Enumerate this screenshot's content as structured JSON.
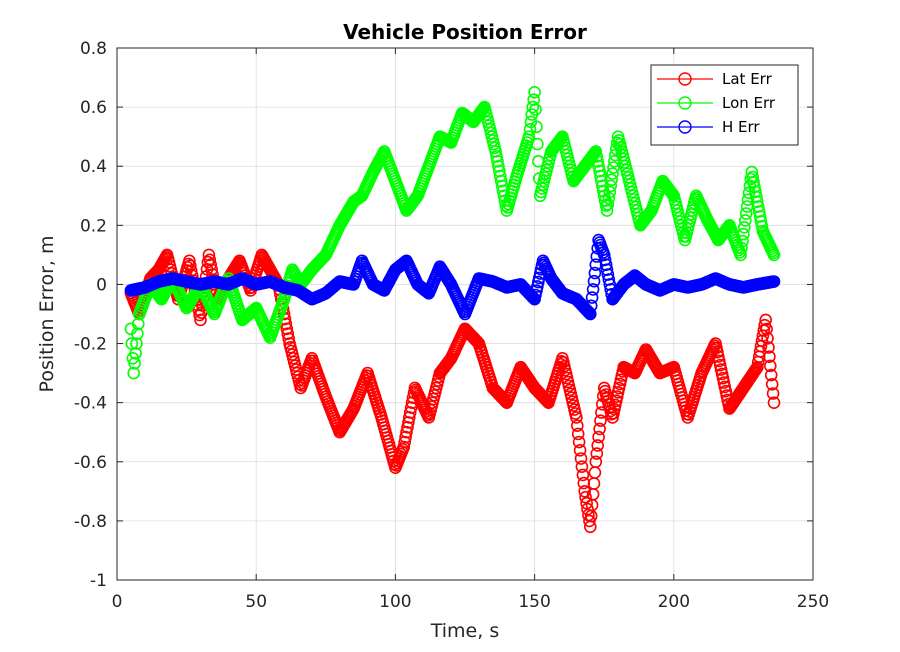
{
  "chart_data": {
    "type": "scatter",
    "title": "Vehicle Position Error",
    "xlabel": "Time, s",
    "ylabel": "Position Error, m",
    "xlim": [
      0,
      250
    ],
    "ylim": [
      -1,
      0.8
    ],
    "xticks": [
      "0",
      "50",
      "100",
      "150",
      "200",
      "250"
    ],
    "yticks": [
      "-1",
      "-0.8",
      "-0.6",
      "-0.4",
      "-0.2",
      "0",
      "0.2",
      "0.4",
      "0.6",
      "0.8"
    ],
    "grid": true,
    "legend_position": "top-right",
    "marker": "circle",
    "series": [
      {
        "name": "Lat Err",
        "color": "#ff0000",
        "x": [
          5,
          8,
          12,
          15,
          18,
          22,
          26,
          30,
          33,
          36,
          40,
          44,
          48,
          52,
          55,
          58,
          62,
          66,
          70,
          75,
          80,
          85,
          90,
          95,
          100,
          103,
          107,
          112,
          116,
          120,
          125,
          130,
          135,
          140,
          145,
          150,
          155,
          160,
          165,
          168,
          170,
          172,
          175,
          178,
          182,
          186,
          190,
          195,
          200,
          205,
          210,
          215,
          220,
          225,
          230,
          233,
          236
        ],
        "y": [
          -0.03,
          -0.1,
          0.02,
          0.05,
          0.1,
          -0.05,
          0.08,
          -0.12,
          0.1,
          -0.05,
          0.02,
          0.08,
          -0.02,
          0.1,
          0.05,
          0.0,
          -0.2,
          -0.35,
          -0.25,
          -0.38,
          -0.5,
          -0.42,
          -0.3,
          -0.45,
          -0.62,
          -0.55,
          -0.35,
          -0.45,
          -0.3,
          -0.25,
          -0.15,
          -0.2,
          -0.35,
          -0.4,
          -0.28,
          -0.35,
          -0.4,
          -0.25,
          -0.45,
          -0.7,
          -0.82,
          -0.6,
          -0.35,
          -0.45,
          -0.28,
          -0.3,
          -0.22,
          -0.3,
          -0.28,
          -0.45,
          -0.3,
          -0.2,
          -0.42,
          -0.35,
          -0.28,
          -0.12,
          -0.4
        ]
      },
      {
        "name": "Lon Err",
        "color": "#00ff00",
        "x": [
          5,
          6,
          8,
          12,
          16,
          20,
          25,
          30,
          35,
          40,
          45,
          50,
          55,
          60,
          63,
          66,
          70,
          75,
          80,
          85,
          88,
          92,
          96,
          100,
          104,
          108,
          112,
          116,
          120,
          124,
          128,
          132,
          136,
          140,
          144,
          148,
          150,
          152,
          156,
          160,
          164,
          168,
          172,
          176,
          180,
          184,
          188,
          192,
          196,
          200,
          204,
          208,
          212,
          216,
          220,
          224,
          228,
          232,
          236
        ],
        "y": [
          -0.15,
          -0.3,
          -0.1,
          0.0,
          -0.05,
          0.02,
          -0.08,
          0.0,
          -0.1,
          0.02,
          -0.12,
          -0.08,
          -0.18,
          -0.05,
          0.05,
          0.0,
          0.05,
          0.1,
          0.2,
          0.28,
          0.3,
          0.38,
          0.45,
          0.35,
          0.25,
          0.3,
          0.4,
          0.5,
          0.48,
          0.58,
          0.55,
          0.6,
          0.45,
          0.25,
          0.38,
          0.5,
          0.65,
          0.3,
          0.45,
          0.5,
          0.35,
          0.4,
          0.45,
          0.25,
          0.5,
          0.35,
          0.2,
          0.25,
          0.35,
          0.3,
          0.15,
          0.3,
          0.22,
          0.15,
          0.2,
          0.1,
          0.38,
          0.18,
          0.1
        ]
      },
      {
        "name": "H Err",
        "color": "#0000ff",
        "x": [
          5,
          10,
          15,
          20,
          25,
          30,
          35,
          40,
          45,
          50,
          55,
          60,
          65,
          70,
          75,
          80,
          85,
          88,
          92,
          96,
          100,
          104,
          108,
          112,
          116,
          120,
          125,
          130,
          135,
          140,
          145,
          150,
          153,
          156,
          160,
          165,
          170,
          173,
          175,
          178,
          182,
          186,
          190,
          195,
          200,
          205,
          210,
          215,
          220,
          225,
          230,
          236
        ],
        "y": [
          -0.02,
          -0.01,
          0.01,
          0.02,
          0.01,
          0.0,
          0.01,
          0.0,
          0.02,
          0.0,
          0.01,
          -0.01,
          -0.02,
          -0.05,
          -0.03,
          0.01,
          0.0,
          0.08,
          0.0,
          -0.02,
          0.05,
          0.08,
          0.0,
          -0.03,
          0.06,
          0.0,
          -0.1,
          0.02,
          0.01,
          -0.01,
          0.0,
          -0.05,
          0.08,
          0.02,
          -0.03,
          -0.05,
          -0.1,
          0.15,
          0.1,
          -0.05,
          0.0,
          0.03,
          0.0,
          -0.02,
          0.0,
          -0.01,
          0.0,
          0.02,
          0.0,
          -0.01,
          0.0,
          0.01
        ]
      }
    ]
  }
}
